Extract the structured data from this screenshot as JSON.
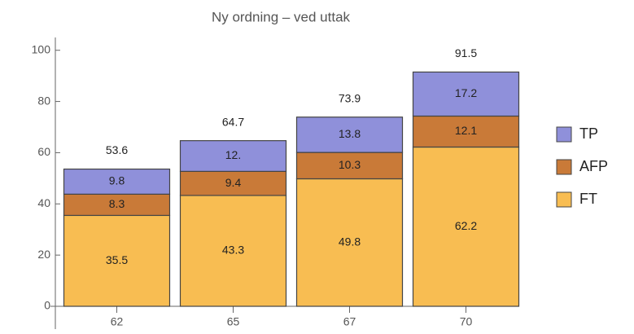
{
  "chart_data": {
    "type": "stacked_bar",
    "title": "Ny ordning – ved uttak",
    "categories": [
      "62",
      "65",
      "67",
      "70"
    ],
    "series": [
      {
        "name": "FT",
        "color": "#f8bd52",
        "values": [
          35.5,
          43.3,
          49.8,
          62.2
        ]
      },
      {
        "name": "AFP",
        "color": "#c97a38",
        "values": [
          8.3,
          9.4,
          10.3,
          12.1
        ]
      },
      {
        "name": "TP",
        "color": "#8f90da",
        "values": [
          9.8,
          12.0,
          13.8,
          17.2
        ],
        "value_labels": [
          "9.8",
          "12.",
          "13.8",
          "17.2"
        ]
      }
    ],
    "totals": [
      53.6,
      64.7,
      73.9,
      91.5
    ],
    "ylim": [
      0,
      105
    ],
    "yticks": [
      0,
      20,
      40,
      60,
      80,
      100
    ],
    "legend": "right"
  }
}
